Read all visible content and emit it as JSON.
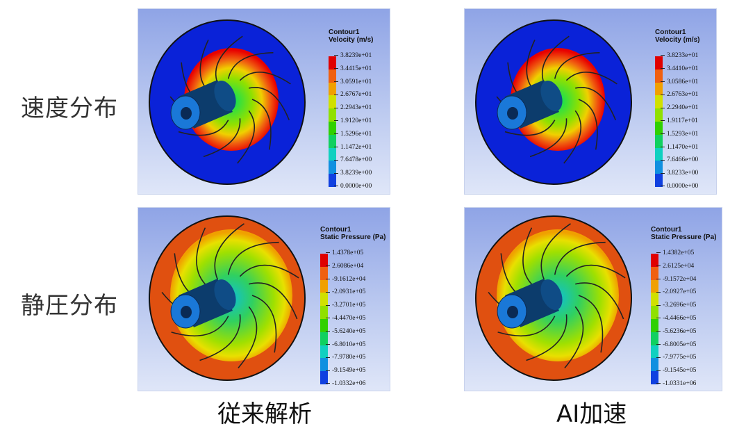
{
  "row_labels": [
    "速度分布",
    "静圧分布"
  ],
  "col_labels": [
    "従来解析",
    "AI加速"
  ],
  "panels": [
    {
      "kind": "velocity",
      "legend_title_1": "Contour1",
      "legend_title_2": "Velocity (m/s)",
      "ticks": [
        "3.8239e+01",
        "3.4415e+01",
        "3.0591e+01",
        "2.6767e+01",
        "2.2943e+01",
        "1.9120e+01",
        "1.5296e+01",
        "1.1472e+01",
        "7.6478e+00",
        "3.8239e+00",
        "0.0000e+00"
      ]
    },
    {
      "kind": "velocity",
      "legend_title_1": "Contour1",
      "legend_title_2": "Velocity (m/s)",
      "ticks": [
        "3.8233e+01",
        "3.4410e+01",
        "3.0586e+01",
        "2.6763e+01",
        "2.2940e+01",
        "1.9117e+01",
        "1.5293e+01",
        "1.1470e+01",
        "7.6466e+00",
        "3.8233e+00",
        "0.0000e+00"
      ]
    },
    {
      "kind": "pressure",
      "legend_title_1": "Contour1",
      "legend_title_2": "Static Pressure (Pa)",
      "ticks": [
        "1.4378e+05",
        "2.6086e+04",
        "-9.1612e+04",
        "-2.0931e+05",
        "-3.2701e+05",
        "-4.4470e+05",
        "-5.6240e+05",
        "-6.8010e+05",
        "-7.9780e+05",
        "-9.1549e+05",
        "-1.0332e+06"
      ]
    },
    {
      "kind": "pressure",
      "legend_title_1": "Contour1",
      "legend_title_2": "Static Pressure (Pa)",
      "ticks": [
        "1.4382e+05",
        "2.6125e+04",
        "-9.1572e+04",
        "-2.0927e+05",
        "-3.2696e+05",
        "-4.4466e+05",
        "-5.6236e+05",
        "-6.8005e+05",
        "-7.9775e+05",
        "-9.1545e+05",
        "-1.0331e+06"
      ]
    }
  ],
  "colors": {
    "legend_scale": [
      "#e00000",
      "#f06010",
      "#f0a000",
      "#d0e000",
      "#90e000",
      "#30d000",
      "#10d060",
      "#10d0c0",
      "#1090e0",
      "#1040e0",
      "#0000d0"
    ],
    "velocity_outer": "#0a22d8",
    "pressure_outer": "#e05010"
  }
}
